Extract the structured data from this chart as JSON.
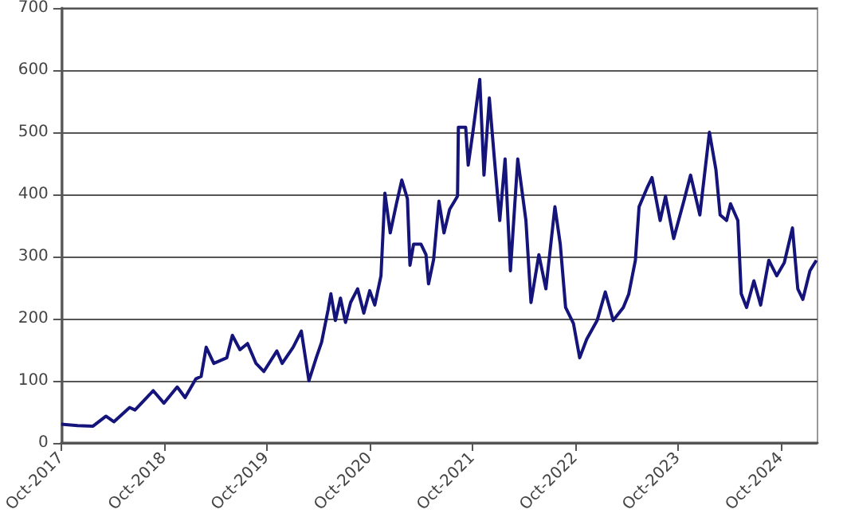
{
  "chart_data": {
    "type": "line",
    "color": "#14147a",
    "grid": "y",
    "marker": "none",
    "line_style": "solid",
    "xlim": [
      "2017-10-01",
      "2025-02-08"
    ],
    "xticks": [
      {
        "value": "2017-10-01",
        "label": "Oct-2017"
      },
      {
        "value": "2018-10-01",
        "label": "Oct-2018"
      },
      {
        "value": "2019-10-01",
        "label": "Oct-2019"
      },
      {
        "value": "2020-10-01",
        "label": "Oct-2020"
      },
      {
        "value": "2021-10-01",
        "label": "Oct-2021"
      },
      {
        "value": "2022-10-01",
        "label": "Oct-2022"
      },
      {
        "value": "2023-10-01",
        "label": "Oct-2023"
      },
      {
        "value": "2024-10-01",
        "label": "Oct-2024"
      }
    ],
    "ylim": [
      0,
      700
    ],
    "yticks": [
      0,
      100,
      200,
      300,
      400,
      500,
      600,
      700
    ],
    "x": [
      "2017-10-01",
      "2017-11-28",
      "2018-01-22",
      "2018-03-09",
      "2018-04-06",
      "2018-06-01",
      "2018-06-20",
      "2018-08-24",
      "2018-10-01",
      "2018-11-17",
      "2018-12-15",
      "2019-01-22",
      "2019-02-10",
      "2019-02-28",
      "2019-03-27",
      "2019-05-12",
      "2019-06-01",
      "2019-06-28",
      "2019-07-25",
      "2019-08-24",
      "2019-09-21",
      "2019-11-06",
      "2019-11-25",
      "2020-01-03",
      "2020-02-01",
      "2020-02-28",
      "2020-03-25",
      "2020-04-13",
      "2020-05-06",
      "2020-05-16",
      "2020-06-01",
      "2020-06-19",
      "2020-07-07",
      "2020-07-25",
      "2020-08-19",
      "2020-09-10",
      "2020-10-01",
      "2020-10-19",
      "2020-11-10",
      "2020-11-24",
      "2020-12-13",
      "2021-01-04",
      "2021-01-23",
      "2021-02-12",
      "2021-02-21",
      "2021-03-06",
      "2021-04-01",
      "2021-04-19",
      "2021-04-28",
      "2021-05-16",
      "2021-06-04",
      "2021-06-22",
      "2021-07-12",
      "2021-08-09",
      "2021-08-12",
      "2021-09-07",
      "2021-09-16",
      "2021-10-04",
      "2021-10-27",
      "2021-11-11",
      "2021-11-30",
      "2021-12-18",
      "2022-01-06",
      "2022-01-25",
      "2022-02-13",
      "2022-03-11",
      "2022-04-09",
      "2022-04-27",
      "2022-05-25",
      "2022-06-19",
      "2022-07-21",
      "2022-08-09",
      "2022-08-28",
      "2022-09-25",
      "2022-10-17",
      "2022-11-11",
      "2022-12-18",
      "2023-01-16",
      "2023-02-13",
      "2023-03-21",
      "2023-04-09",
      "2023-05-03",
      "2023-05-16",
      "2023-06-13",
      "2023-07-01",
      "2023-07-30",
      "2023-08-18",
      "2023-09-16",
      "2023-10-22",
      "2023-11-15",
      "2023-12-18",
      "2024-01-21",
      "2024-02-13",
      "2024-02-28",
      "2024-03-22",
      "2024-04-05",
      "2024-05-01",
      "2024-05-13",
      "2024-06-01",
      "2024-06-27",
      "2024-07-21",
      "2024-08-19",
      "2024-09-16",
      "2024-10-13",
      "2024-11-11",
      "2024-11-30",
      "2024-12-18",
      "2025-01-12",
      "2025-02-04"
    ],
    "values": [
      30,
      28,
      27,
      43,
      34,
      57,
      53,
      84,
      64,
      90,
      73,
      103,
      107,
      154,
      128,
      137,
      173,
      150,
      160,
      128,
      115,
      148,
      128,
      154,
      180,
      100,
      137,
      162,
      214,
      240,
      197,
      233,
      194,
      226,
      248,
      209,
      245,
      222,
      269,
      402,
      338,
      385,
      423,
      393,
      286,
      320,
      320,
      303,
      256,
      295,
      389,
      338,
      376,
      397,
      508,
      508,
      447,
      505,
      585,
      431,
      555,
      457,
      358,
      457,
      277,
      457,
      358,
      226,
      303,
      248,
      380,
      320,
      218,
      192,
      137,
      167,
      197,
      243,
      197,
      218,
      239,
      294,
      380,
      410,
      427,
      358,
      397,
      329,
      389,
      431,
      367,
      500,
      440,
      367,
      358,
      385,
      358,
      240,
      218,
      261,
      222,
      294,
      269,
      290,
      346,
      248,
      231,
      277,
      294
    ]
  }
}
